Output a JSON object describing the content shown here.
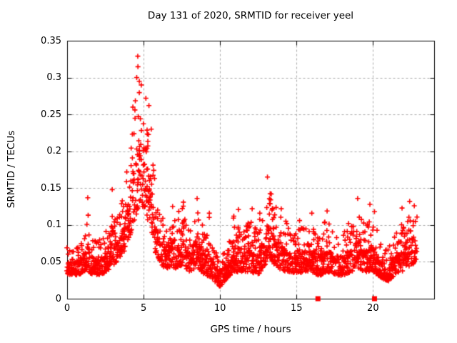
{
  "figure": {
    "background": "#ffffff"
  },
  "chart_data": {
    "type": "scatter",
    "title": "Day 131 of 2020, SRMTID for receiver yeel",
    "xlabel": "GPS time / hours",
    "ylabel": "SRMTID / TECUs",
    "xlim": [
      0,
      24
    ],
    "ylim": [
      0,
      0.35
    ],
    "xticks": [
      0,
      5,
      10,
      15,
      20
    ],
    "yticks": [
      0,
      0.05,
      0.1,
      0.15,
      0.2,
      0.25,
      0.3,
      0.35
    ],
    "grid": true,
    "grid_color": "#a8a8a8",
    "axis_color": "#000000",
    "marker": "plus",
    "marker_color": "#ff0000",
    "marker_size_px": 7,
    "seed": 1312020,
    "sample_step_hours": 0.05,
    "data_start_hour": 0,
    "data_end_hour": 22.9,
    "band_envelope_note": "piecewise-linear dense band of SRMTID values: [hour, band_low_TECU, band_high_TECU]",
    "band": [
      [
        0,
        0.03,
        0.07
      ],
      [
        0.5,
        0.028,
        0.075
      ],
      [
        1.0,
        0.03,
        0.085
      ],
      [
        1.3,
        0.035,
        0.1
      ],
      [
        1.5,
        0.03,
        0.085
      ],
      [
        2.0,
        0.028,
        0.08
      ],
      [
        2.5,
        0.03,
        0.09
      ],
      [
        3.0,
        0.04,
        0.105
      ],
      [
        3.5,
        0.05,
        0.125
      ],
      [
        3.9,
        0.06,
        0.165
      ],
      [
        4.2,
        0.08,
        0.22
      ],
      [
        4.5,
        0.1,
        0.285
      ],
      [
        4.65,
        0.11,
        0.315
      ],
      [
        4.8,
        0.12,
        0.28
      ],
      [
        5.0,
        0.11,
        0.26
      ],
      [
        5.2,
        0.1,
        0.265
      ],
      [
        5.5,
        0.085,
        0.21
      ],
      [
        5.8,
        0.055,
        0.15
      ],
      [
        6.1,
        0.04,
        0.115
      ],
      [
        6.5,
        0.035,
        0.105
      ],
      [
        7.0,
        0.035,
        0.11
      ],
      [
        7.5,
        0.038,
        0.125
      ],
      [
        8.0,
        0.032,
        0.1
      ],
      [
        8.5,
        0.035,
        0.125
      ],
      [
        9.0,
        0.028,
        0.095
      ],
      [
        9.5,
        0.022,
        0.08
      ],
      [
        10.0,
        0.012,
        0.06
      ],
      [
        10.5,
        0.025,
        0.08
      ],
      [
        11.0,
        0.03,
        0.1
      ],
      [
        11.5,
        0.032,
        0.095
      ],
      [
        12.0,
        0.03,
        0.11
      ],
      [
        12.5,
        0.028,
        0.09
      ],
      [
        13.0,
        0.04,
        0.14
      ],
      [
        13.2,
        0.05,
        0.155
      ],
      [
        13.5,
        0.04,
        0.13
      ],
      [
        14.0,
        0.032,
        0.115
      ],
      [
        14.5,
        0.03,
        0.1
      ],
      [
        15.0,
        0.03,
        0.092
      ],
      [
        15.5,
        0.03,
        0.1
      ],
      [
        16.0,
        0.03,
        0.108
      ],
      [
        16.5,
        0.026,
        0.09
      ],
      [
        17.0,
        0.03,
        0.11
      ],
      [
        17.5,
        0.028,
        0.09
      ],
      [
        18.0,
        0.026,
        0.088
      ],
      [
        18.5,
        0.03,
        0.1
      ],
      [
        19.0,
        0.035,
        0.125
      ],
      [
        19.5,
        0.03,
        0.1
      ],
      [
        20.0,
        0.03,
        0.115
      ],
      [
        20.5,
        0.024,
        0.08
      ],
      [
        21.0,
        0.02,
        0.072
      ],
      [
        21.5,
        0.028,
        0.09
      ],
      [
        22.0,
        0.032,
        0.108
      ],
      [
        22.5,
        0.04,
        0.125
      ],
      [
        22.9,
        0.04,
        0.115
      ]
    ],
    "spikes_note": "isolated column maxima: [hour, peak_TECU]",
    "spikes": [
      [
        1.35,
        0.137
      ],
      [
        2.95,
        0.148
      ],
      [
        3.9,
        0.172
      ],
      [
        4.3,
        0.26
      ],
      [
        4.55,
        0.3
      ],
      [
        4.62,
        0.329
      ],
      [
        4.72,
        0.295
      ],
      [
        4.85,
        0.29
      ],
      [
        5.15,
        0.272
      ],
      [
        5.35,
        0.262
      ],
      [
        5.5,
        0.23
      ],
      [
        6.9,
        0.125
      ],
      [
        7.6,
        0.131
      ],
      [
        8.5,
        0.136
      ],
      [
        9.3,
        0.116
      ],
      [
        10.9,
        0.112
      ],
      [
        11.2,
        0.121
      ],
      [
        12.1,
        0.122
      ],
      [
        12.6,
        0.116
      ],
      [
        13.1,
        0.165
      ],
      [
        13.35,
        0.142
      ],
      [
        14.0,
        0.122
      ],
      [
        15.2,
        0.106
      ],
      [
        16.0,
        0.116
      ],
      [
        17.0,
        0.119
      ],
      [
        18.4,
        0.102
      ],
      [
        19.0,
        0.136
      ],
      [
        19.8,
        0.128
      ],
      [
        20.1,
        0.118
      ],
      [
        21.9,
        0.123
      ],
      [
        22.4,
        0.132
      ],
      [
        22.7,
        0.126
      ]
    ],
    "axis_marker_squares_hours_note": "filled red squares sitting on the y=0 axis line",
    "axis_marker_squares_hours": [
      16.4,
      20.1
    ],
    "max_value": 0.329,
    "max_value_hour": 4.62
  }
}
